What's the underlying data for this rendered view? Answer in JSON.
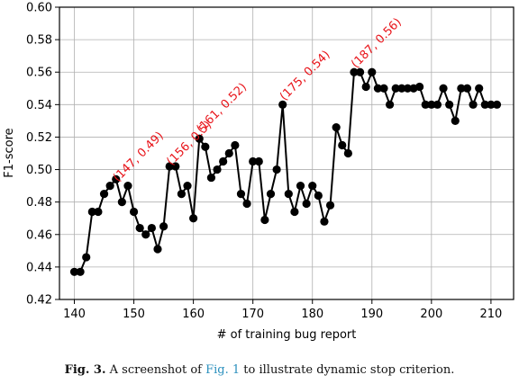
{
  "chart_data": {
    "type": "line",
    "xlabel": "# of training bug report",
    "ylabel": "F1-score",
    "xlim": [
      137.5,
      213.8
    ],
    "ylim": [
      0.42,
      0.6
    ],
    "xticks": [
      140,
      150,
      160,
      170,
      180,
      190,
      200,
      210
    ],
    "xtick_labels": [
      "140",
      "150",
      "160",
      "170",
      "180",
      "190",
      "200",
      "210"
    ],
    "yticks": [
      0.42,
      0.44,
      0.46,
      0.48,
      0.5,
      0.52,
      0.54,
      0.56,
      0.58,
      0.6
    ],
    "ytick_labels": [
      "0.42",
      "0.44",
      "0.46",
      "0.48",
      "0.50",
      "0.52",
      "0.54",
      "0.56",
      "0.58",
      "0.60"
    ],
    "grid": true,
    "series": [
      {
        "color": "#000000",
        "marker": "circle",
        "x": [
          140,
          141,
          142,
          143,
          144,
          145,
          146,
          147,
          148,
          149,
          150,
          151,
          152,
          153,
          154,
          155,
          156,
          157,
          158,
          159,
          160,
          161,
          162,
          163,
          164,
          165,
          166,
          167,
          168,
          169,
          170,
          171,
          172,
          173,
          174,
          175,
          176,
          177,
          178,
          179,
          180,
          181,
          182,
          183,
          184,
          185,
          186,
          187,
          188,
          189,
          190,
          191,
          192,
          193,
          194,
          195,
          196,
          197,
          198,
          199,
          200,
          201,
          202,
          203,
          204,
          205,
          206,
          207,
          208,
          209,
          210,
          211
        ],
        "y": [
          0.437,
          0.437,
          0.446,
          0.474,
          0.474,
          0.485,
          0.49,
          0.494,
          0.48,
          0.49,
          0.474,
          0.464,
          0.46,
          0.464,
          0.451,
          0.465,
          0.502,
          0.502,
          0.485,
          0.49,
          0.47,
          0.519,
          0.514,
          0.495,
          0.5,
          0.505,
          0.51,
          0.515,
          0.485,
          0.479,
          0.505,
          0.505,
          0.469,
          0.485,
          0.5,
          0.54,
          0.485,
          0.474,
          0.49,
          0.479,
          0.49,
          0.484,
          0.468,
          0.478,
          0.526,
          0.515,
          0.51,
          0.56,
          0.56,
          0.551,
          0.56,
          0.55,
          0.55,
          0.54,
          0.55,
          0.55,
          0.55,
          0.55,
          0.551,
          0.54,
          0.54,
          0.54,
          0.55,
          0.54,
          0.53,
          0.55,
          0.55,
          0.54,
          0.55,
          0.54,
          0.54,
          0.54
        ]
      }
    ],
    "annotations": [
      {
        "text": "(147, 0.49)",
        "x": 147,
        "y": 0.49,
        "color": "#e8141a",
        "rotation": -45
      },
      {
        "text": "(156, 0.5)",
        "x": 156,
        "y": 0.5,
        "color": "#e8141a",
        "rotation": -45
      },
      {
        "text": "(161, 0.52)",
        "x": 161,
        "y": 0.52,
        "color": "#e8141a",
        "rotation": -45
      },
      {
        "text": "(175, 0.54)",
        "x": 175,
        "y": 0.54,
        "color": "#e8141a",
        "rotation": -45
      },
      {
        "text": "(187, 0.56)",
        "x": 187,
        "y": 0.56,
        "color": "#e8141a",
        "rotation": -45
      }
    ]
  },
  "caption": {
    "fig_label": "Fig. 3.",
    "text_before": "A screenshot of",
    "ref": "Fig. 1",
    "text_after": "to illustrate dynamic stop criterion."
  }
}
